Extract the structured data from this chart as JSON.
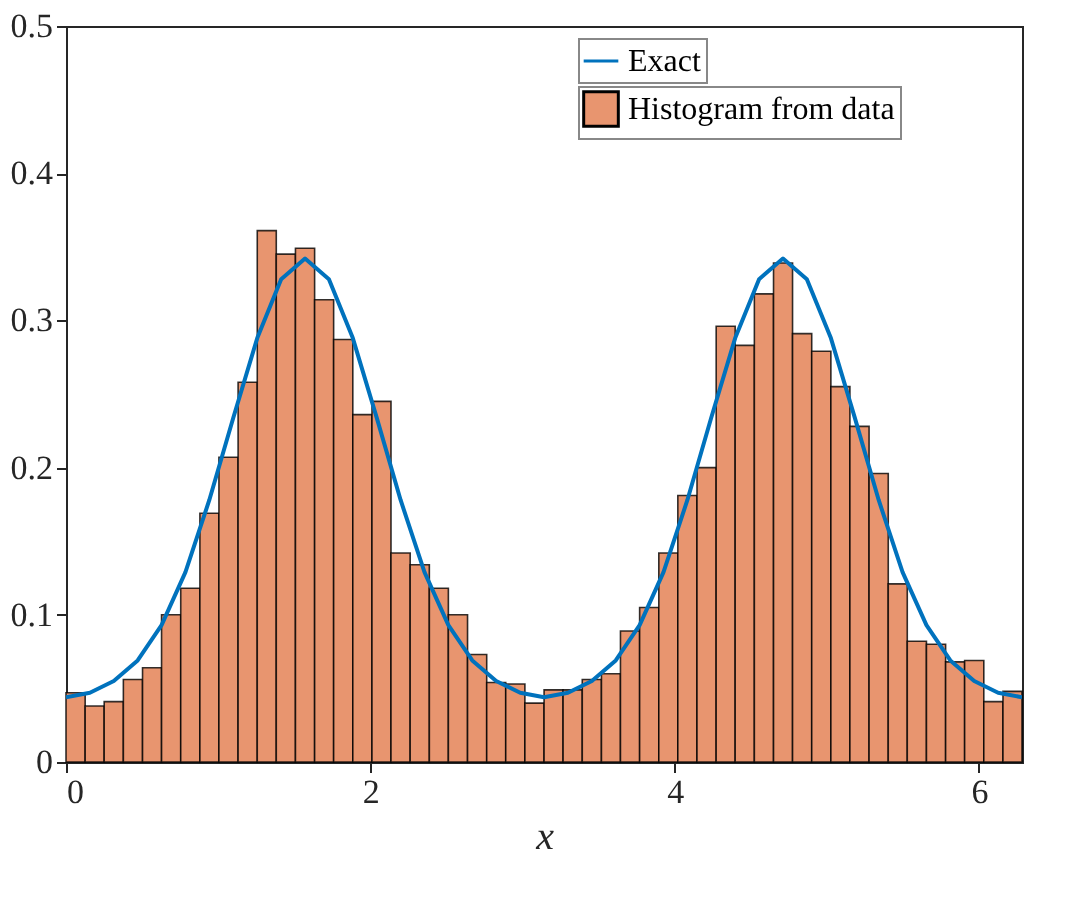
{
  "chart_data": {
    "type": "histogram",
    "xlabel": "x",
    "bins": [
      0,
      0.126,
      0.251,
      0.377,
      0.503,
      0.628,
      0.754,
      0.88,
      1.005,
      1.131,
      1.257,
      1.382,
      1.508,
      1.634,
      1.759,
      1.885,
      2.011,
      2.136,
      2.262,
      2.388,
      2.513,
      2.639,
      2.765,
      2.89,
      3.016,
      3.142,
      3.267,
      3.393,
      3.519,
      3.644,
      3.77,
      3.896,
      4.021,
      4.147,
      4.273,
      4.398,
      4.524,
      4.65,
      4.775,
      4.901,
      5.027,
      5.152,
      5.278,
      5.404,
      5.529,
      5.655,
      5.781,
      5.906,
      6.032,
      6.158,
      6.283
    ],
    "series": [
      {
        "name": "Exact",
        "type": "line",
        "color": "#0072bd",
        "x": [
          0,
          0.157,
          0.314,
          0.471,
          0.628,
          0.785,
          0.942,
          1.1,
          1.257,
          1.414,
          1.571,
          1.728,
          1.885,
          2.042,
          2.199,
          2.356,
          2.513,
          2.67,
          2.827,
          2.985,
          3.142,
          3.299,
          3.456,
          3.613,
          3.77,
          3.927,
          4.084,
          4.241,
          4.398,
          4.555,
          4.712,
          4.869,
          5.027,
          5.184,
          5.341,
          5.498,
          5.655,
          5.812,
          5.969,
          6.126,
          6.283
        ],
        "values": [
          0.044,
          0.047,
          0.055,
          0.069,
          0.093,
          0.129,
          0.178,
          0.234,
          0.288,
          0.328,
          0.342,
          0.328,
          0.288,
          0.234,
          0.178,
          0.129,
          0.093,
          0.069,
          0.055,
          0.047,
          0.044,
          0.047,
          0.055,
          0.069,
          0.093,
          0.129,
          0.178,
          0.234,
          0.288,
          0.328,
          0.342,
          0.328,
          0.288,
          0.234,
          0.178,
          0.129,
          0.093,
          0.069,
          0.055,
          0.047,
          0.044
        ]
      },
      {
        "name": "Histogram from data",
        "type": "histogram",
        "color": "#e8956f",
        "values": [
          0.047,
          0.038,
          0.041,
          0.056,
          0.064,
          0.1,
          0.118,
          0.169,
          0.207,
          0.258,
          0.361,
          0.345,
          0.349,
          0.314,
          0.287,
          0.236,
          0.245,
          0.142,
          0.134,
          0.118,
          0.1,
          0.073,
          0.054,
          0.053,
          0.04,
          0.049,
          0.049,
          0.056,
          0.06,
          0.089,
          0.105,
          0.142,
          0.181,
          0.2,
          0.296,
          0.283,
          0.318,
          0.339,
          0.291,
          0.279,
          0.255,
          0.228,
          0.196,
          0.121,
          0.082,
          0.08,
          0.068,
          0.069,
          0.041,
          0.048
        ]
      }
    ],
    "xlim": [
      0,
      6.283
    ],
    "xticks": [
      0,
      2,
      4,
      6
    ],
    "ylim": [
      0,
      0.5
    ],
    "yticks": [
      0,
      0.1,
      0.2,
      0.3,
      0.4,
      0.5
    ],
    "grid": false,
    "legend": "top right"
  }
}
